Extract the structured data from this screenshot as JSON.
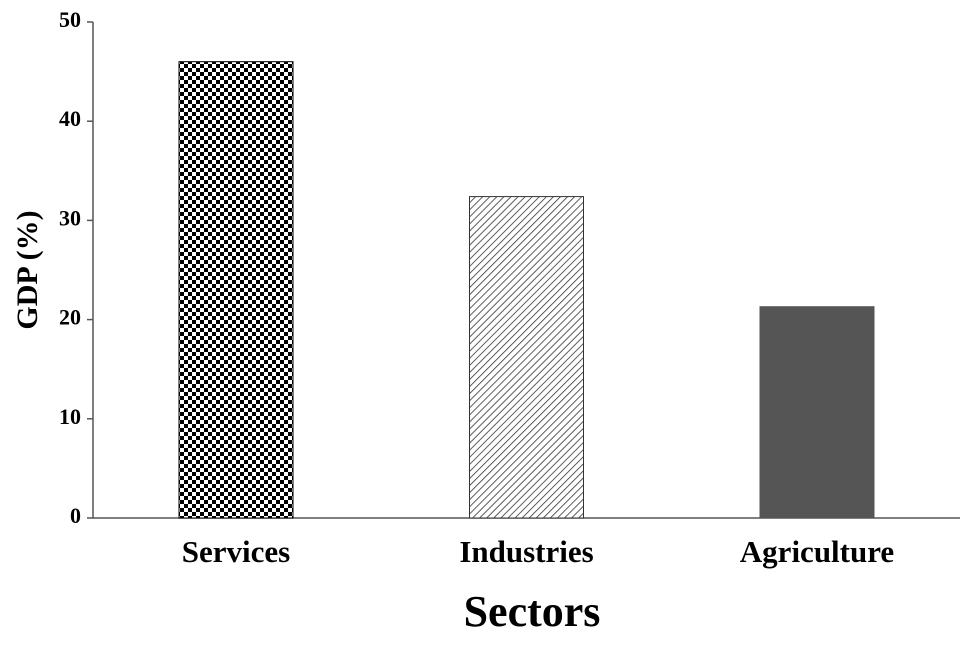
{
  "chart_data": {
    "type": "bar",
    "x_label": "Sectors",
    "y_label": "GDP (%)",
    "categories": [
      "Services",
      "Industries",
      "Agriculture"
    ],
    "values": [
      46.0,
      32.4,
      21.3
    ],
    "patterns": [
      "checker",
      "hatch",
      "solid"
    ],
    "colors": [
      "#000000",
      "#333333",
      "#555555"
    ],
    "ylim": [
      0,
      50
    ],
    "yticks": [
      0,
      10,
      20,
      30,
      40,
      50
    ],
    "grid": false
  }
}
